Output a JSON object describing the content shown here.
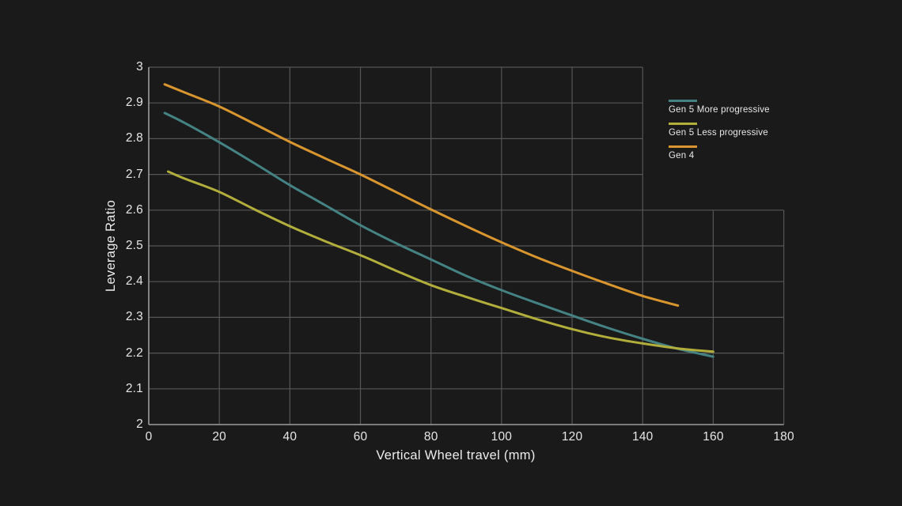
{
  "colors": {
    "background": "#1A1A1A",
    "grid": "#565656",
    "axis": "#9C9C9C",
    "text": "#E6E6E6"
  },
  "chart_data": {
    "type": "line",
    "title": "",
    "xlabel": "Vertical Wheel travel (mm)",
    "ylabel": "Leverage Ratio",
    "xlim": [
      0,
      180
    ],
    "ylim": [
      2,
      3
    ],
    "x_ticks": [
      0,
      20,
      40,
      60,
      80,
      100,
      120,
      140,
      160,
      180
    ],
    "y_ticks": [
      3,
      2.9,
      2.8,
      2.7,
      2.6,
      2.5,
      2.4,
      2.3,
      2.2,
      2.1,
      2
    ],
    "grid": true,
    "grid_break": {
      "x": 140,
      "y": 2.6
    },
    "legend_position": "top-right-outside-grid",
    "series": [
      {
        "name": "Gen 5 More progressive",
        "color": "#448284",
        "points": [
          [
            4.5,
            2.872
          ],
          [
            10,
            2.845
          ],
          [
            20,
            2.79
          ],
          [
            30,
            2.731
          ],
          [
            40,
            2.67
          ],
          [
            50,
            2.614
          ],
          [
            60,
            2.558
          ],
          [
            70,
            2.508
          ],
          [
            80,
            2.462
          ],
          [
            90,
            2.416
          ],
          [
            100,
            2.376
          ],
          [
            110,
            2.34
          ],
          [
            120,
            2.305
          ],
          [
            130,
            2.271
          ],
          [
            140,
            2.24
          ],
          [
            150,
            2.212
          ],
          [
            160,
            2.19
          ]
        ]
      },
      {
        "name": "Gen 5 Less progressive",
        "color": "#B2AE3C",
        "points": [
          [
            5.5,
            2.708
          ],
          [
            10,
            2.689
          ],
          [
            20,
            2.651
          ],
          [
            30,
            2.602
          ],
          [
            40,
            2.555
          ],
          [
            50,
            2.513
          ],
          [
            60,
            2.474
          ],
          [
            70,
            2.431
          ],
          [
            80,
            2.39
          ],
          [
            90,
            2.357
          ],
          [
            100,
            2.326
          ],
          [
            110,
            2.295
          ],
          [
            120,
            2.267
          ],
          [
            130,
            2.244
          ],
          [
            140,
            2.227
          ],
          [
            150,
            2.213
          ],
          [
            160,
            2.204
          ]
        ]
      },
      {
        "name": "Gen 4",
        "color": "#D9962F",
        "points": [
          [
            4.5,
            2.952
          ],
          [
            10,
            2.93
          ],
          [
            20,
            2.89
          ],
          [
            30,
            2.841
          ],
          [
            40,
            2.791
          ],
          [
            50,
            2.745
          ],
          [
            60,
            2.7
          ],
          [
            70,
            2.651
          ],
          [
            80,
            2.602
          ],
          [
            90,
            2.555
          ],
          [
            100,
            2.51
          ],
          [
            110,
            2.468
          ],
          [
            120,
            2.43
          ],
          [
            130,
            2.394
          ],
          [
            140,
            2.36
          ],
          [
            150,
            2.333
          ]
        ]
      }
    ]
  }
}
